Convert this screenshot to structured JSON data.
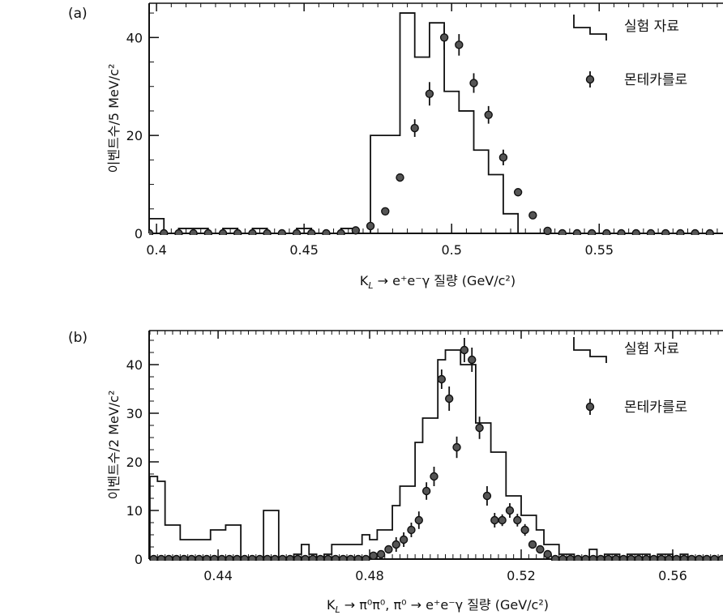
{
  "chart_data": [
    {
      "type": "histogram",
      "panel_label": "(a)",
      "xlabel": "K_L → e⁺e⁻γ 질량 (GeV/c²)",
      "xlabel_parts": {
        "k": "K",
        "sub": "L",
        "rest": " → e⁺e⁻γ 질량 (GeV/c²)"
      },
      "ylabel": "이벤트수/5 MeV/c²",
      "xlim": [
        0.3975,
        0.5925
      ],
      "ylim": [
        0,
        47
      ],
      "xticks": [
        0.4,
        0.45,
        0.5,
        0.55
      ],
      "xtick_labels": [
        "0.4",
        "0.45",
        "0.5",
        "0.55"
      ],
      "yticks": [
        0,
        20,
        40
      ],
      "ytick_labels": [
        "0",
        "20",
        "40"
      ],
      "minor_xtick_step": 0.005,
      "legend": {
        "placement": "top-right",
        "histogram_label": "실험 자료",
        "points_label": "몬테카를로"
      },
      "series": [
        {
          "name": "실험 자료",
          "kind": "step",
          "bin_edges": [
            0.3975,
            0.4025,
            0.4075,
            0.4125,
            0.4175,
            0.4225,
            0.4275,
            0.4325,
            0.4375,
            0.4425,
            0.4475,
            0.4525,
            0.4575,
            0.4625,
            0.4675,
            0.4725,
            0.4775,
            0.4825,
            0.4875,
            0.4925,
            0.4975,
            0.5025,
            0.5075,
            0.5125,
            0.5175,
            0.5225,
            0.5275,
            0.5325,
            0.5375,
            0.5425,
            0.5475,
            0.5525,
            0.5575,
            0.5625,
            0.5675,
            0.5725,
            0.5775,
            0.5825,
            0.5875,
            0.5925
          ],
          "counts": [
            3,
            0,
            1,
            1,
            0,
            1,
            0,
            1,
            0,
            0,
            1,
            0,
            0,
            1,
            0,
            20,
            20,
            45,
            36,
            43,
            29,
            25,
            17,
            12,
            4,
            0,
            0,
            0,
            0,
            0,
            0,
            0,
            0,
            0,
            0,
            0,
            0,
            0,
            0
          ]
        },
        {
          "name": "몬테카를로",
          "kind": "points",
          "x": [
            0.3975,
            0.4025,
            0.4075,
            0.4125,
            0.4175,
            0.4225,
            0.4275,
            0.4325,
            0.4375,
            0.4425,
            0.4475,
            0.4525,
            0.4575,
            0.4625,
            0.4675,
            0.4725,
            0.4775,
            0.4825,
            0.4875,
            0.4925,
            0.4975,
            0.5025,
            0.5075,
            0.5125,
            0.5175,
            0.5225,
            0.5275,
            0.5325,
            0.5375,
            0.5425,
            0.5475,
            0.5525,
            0.5575,
            0.5625,
            0.5675,
            0.5725,
            0.5775,
            0.5825,
            0.5875
          ],
          "y": [
            0,
            0,
            0,
            0,
            0,
            0,
            0,
            0,
            0,
            0,
            0,
            0,
            0,
            0,
            0.6,
            1.5,
            4.5,
            11.4,
            21.5,
            28.5,
            40,
            38.5,
            30.7,
            24.2,
            15.5,
            8.4,
            3.7,
            0.5,
            0,
            0,
            0,
            0,
            0,
            0,
            0,
            0,
            0,
            0,
            0
          ],
          "err": [
            0,
            0,
            0,
            0,
            0,
            0,
            0,
            0,
            0,
            0,
            0,
            0,
            0,
            0,
            0,
            0,
            0,
            0,
            1.8,
            2.4,
            2.5,
            2.2,
            2,
            1.8,
            1.6,
            0,
            0,
            0,
            0,
            0,
            0,
            0,
            0,
            0,
            0,
            0,
            0,
            0,
            0
          ]
        }
      ]
    },
    {
      "type": "histogram",
      "panel_label": "(b)",
      "xlabel": "K_L → π⁰π⁰, π⁰ → e⁺e⁻γ 질량 (GeV/c²)",
      "xlabel_parts": {
        "k": "K",
        "sub": "L",
        "rest": " → π⁰π⁰, π⁰ → e⁺e⁻γ 질량 (GeV/c²)"
      },
      "ylabel": "이벤트수/2 MeV/c²",
      "xlim": [
        0.4218,
        0.5737
      ],
      "ylim": [
        0,
        47
      ],
      "xticks": [
        0.44,
        0.48,
        0.52,
        0.56
      ],
      "xtick_labels": [
        "0.44",
        "0.48",
        "0.52",
        "0.56"
      ],
      "yticks": [
        0,
        10,
        20,
        30,
        40
      ],
      "ytick_labels": [
        "0",
        "10",
        "20",
        "30",
        "40"
      ],
      "minor_xtick_step": 0.002,
      "legend": {
        "placement": "top-right",
        "histogram_label": "실험 자료",
        "points_label": "몬테카를로"
      },
      "series": [
        {
          "name": "실험 자료",
          "kind": "step",
          "bin_edges": [
            0.422,
            0.424,
            0.426,
            0.428,
            0.43,
            0.432,
            0.434,
            0.436,
            0.438,
            0.44,
            0.442,
            0.444,
            0.446,
            0.448,
            0.45,
            0.452,
            0.454,
            0.456,
            0.458,
            0.46,
            0.462,
            0.464,
            0.466,
            0.468,
            0.47,
            0.472,
            0.474,
            0.476,
            0.478,
            0.48,
            0.482,
            0.484,
            0.486,
            0.488,
            0.49,
            0.492,
            0.494,
            0.496,
            0.498,
            0.5,
            0.502,
            0.504,
            0.506,
            0.508,
            0.51,
            0.512,
            0.514,
            0.516,
            0.518,
            0.52,
            0.522,
            0.524,
            0.526,
            0.528,
            0.53,
            0.532,
            0.534,
            0.536,
            0.538,
            0.54,
            0.542,
            0.544,
            0.546,
            0.548,
            0.55,
            0.552,
            0.554,
            0.556,
            0.558,
            0.56,
            0.562,
            0.564,
            0.566,
            0.568,
            0.57,
            0.572,
            0.574
          ],
          "counts": [
            17,
            16,
            7,
            7,
            4,
            4,
            4,
            4,
            6,
            6,
            7,
            7,
            0,
            0,
            0,
            10,
            10,
            0,
            0,
            1,
            3,
            1,
            0,
            1,
            3,
            3,
            3,
            3,
            5,
            4,
            6,
            6,
            11,
            15,
            15,
            24,
            29,
            29,
            41,
            43,
            43,
            40,
            40,
            28,
            28,
            22,
            22,
            13,
            13,
            9,
            9,
            6,
            3,
            3,
            1,
            1,
            0,
            0,
            2,
            0,
            1,
            1,
            0,
            1,
            1,
            1,
            0,
            1,
            1,
            0,
            1,
            0,
            0,
            0,
            0,
            0,
            0
          ]
        },
        {
          "name": "몬테카를로",
          "kind": "points",
          "x": [
            0.423,
            0.425,
            0.427,
            0.429,
            0.431,
            0.433,
            0.435,
            0.437,
            0.439,
            0.441,
            0.443,
            0.445,
            0.447,
            0.449,
            0.451,
            0.453,
            0.455,
            0.457,
            0.459,
            0.461,
            0.463,
            0.465,
            0.467,
            0.469,
            0.471,
            0.473,
            0.475,
            0.477,
            0.479,
            0.481,
            0.483,
            0.485,
            0.487,
            0.489,
            0.491,
            0.493,
            0.495,
            0.497,
            0.499,
            0.501,
            0.503,
            0.505,
            0.507,
            0.509,
            0.511,
            0.513,
            0.515,
            0.517,
            0.519,
            0.521,
            0.523,
            0.525,
            0.527,
            0.529,
            0.531,
            0.533,
            0.535,
            0.537,
            0.539,
            0.541,
            0.543,
            0.545,
            0.547,
            0.549,
            0.551,
            0.553,
            0.555,
            0.557,
            0.559,
            0.561,
            0.563,
            0.565,
            0.567,
            0.569,
            0.571,
            0.573
          ],
          "y": [
            0,
            0,
            0,
            0,
            0,
            0,
            0,
            0,
            0,
            0,
            0,
            0,
            0,
            0,
            0,
            0,
            0,
            0,
            0,
            0,
            0,
            0,
            0,
            0,
            0,
            0,
            0,
            0,
            0,
            0.7,
            1,
            2,
            3,
            4,
            6,
            8,
            14,
            17,
            37,
            33,
            23,
            43,
            41,
            27,
            13,
            8,
            8,
            10,
            8,
            6,
            3,
            2,
            1,
            0,
            0,
            0,
            0,
            0,
            0,
            0,
            0,
            0,
            0,
            0,
            0,
            0,
            0,
            0,
            0,
            0,
            0,
            0,
            0,
            0,
            0,
            0
          ],
          "err": [
            0,
            0,
            0,
            0,
            0,
            0,
            0,
            0,
            0,
            0,
            0,
            0,
            0,
            0,
            0,
            0,
            0,
            0,
            0,
            0,
            0,
            0,
            0,
            0,
            0,
            0,
            0,
            0,
            0,
            0,
            0,
            0,
            1.5,
            1.5,
            1.5,
            1.8,
            1.8,
            2,
            2,
            2.5,
            2.2,
            2.5,
            2.5,
            2.3,
            2,
            1.5,
            1.2,
            1.5,
            1.3,
            1.2,
            0,
            0,
            0,
            0,
            0,
            0,
            0,
            0,
            0,
            0,
            0,
            0,
            0,
            0,
            0,
            0,
            0,
            0,
            0,
            0,
            0,
            0,
            0,
            0,
            0,
            0
          ]
        }
      ]
    }
  ]
}
